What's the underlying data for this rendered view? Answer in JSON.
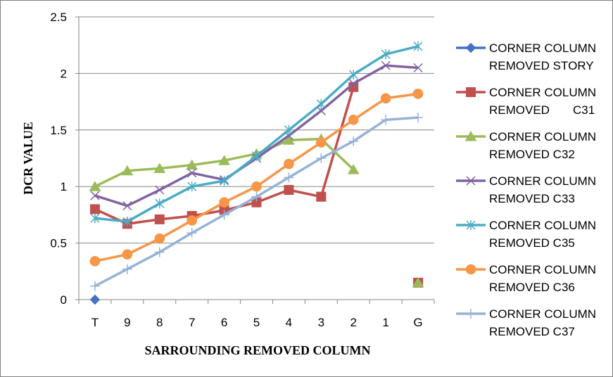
{
  "chart_data": {
    "type": "line",
    "categories": [
      "T",
      "9",
      "8",
      "7",
      "6",
      "5",
      "4",
      "3",
      "2",
      "1",
      "G"
    ],
    "xlabel": "SARROUNDING REMOVED COLUMN",
    "ylabel": "DCR VALUE",
    "ylim": [
      0,
      2.5
    ],
    "yticks": [
      "0",
      "0.5",
      "1",
      "1.5",
      "2",
      "2.5"
    ],
    "grid": "horizontal",
    "legend": "right",
    "series": [
      {
        "name": "CORNER COLUMN REMOVED STORY",
        "legend_lines": [
          "CORNER COLUMN",
          "REMOVED STORY"
        ],
        "color": "#4472C4",
        "marker": "diamond",
        "values": [
          0,
          null,
          null,
          null,
          null,
          null,
          null,
          null,
          null,
          null,
          null
        ]
      },
      {
        "name": "CORNER COLUMN REMOVED C31",
        "legend_lines": [
          "CORNER COLUMN",
          "REMOVED       C31"
        ],
        "color": "#C0504D",
        "marker": "square",
        "values": [
          0.8,
          0.67,
          0.71,
          0.74,
          0.79,
          0.86,
          0.97,
          0.91,
          1.88,
          null,
          0.15
        ]
      },
      {
        "name": "CORNER COLUMN REMOVED C32",
        "legend_lines": [
          "CORNER COLUMN",
          "REMOVED C32"
        ],
        "color": "#9BBB59",
        "marker": "triangle",
        "values": [
          1.0,
          1.14,
          1.16,
          1.19,
          1.23,
          1.29,
          1.41,
          1.42,
          1.15,
          null,
          0.15
        ]
      },
      {
        "name": "CORNER COLUMN REMOVED C33",
        "legend_lines": [
          "CORNER COLUMN",
          "REMOVED C33"
        ],
        "color": "#8064A2",
        "marker": "x",
        "values": [
          0.92,
          0.83,
          0.97,
          1.12,
          1.06,
          1.25,
          1.45,
          1.67,
          1.91,
          2.07,
          2.05
        ]
      },
      {
        "name": "CORNER COLUMN REMOVED C35",
        "legend_lines": [
          "CORNER COLUMN",
          "REMOVED C35"
        ],
        "color": "#4BACC6",
        "marker": "star",
        "values": [
          0.72,
          0.69,
          0.85,
          1.0,
          1.05,
          1.27,
          1.5,
          1.73,
          1.99,
          2.17,
          2.24
        ]
      },
      {
        "name": "CORNER COLUMN REMOVED C36",
        "legend_lines": [
          "CORNER COLUMN",
          "REMOVED C36"
        ],
        "color": "#F79646",
        "marker": "circle",
        "values": [
          0.34,
          0.4,
          0.54,
          0.7,
          0.86,
          1.0,
          1.2,
          1.39,
          1.59,
          1.78,
          1.82
        ]
      },
      {
        "name": "CORNER COLUMN REMOVED C37",
        "legend_lines": [
          "CORNER COLUMN",
          "REMOVED C37"
        ],
        "color": "#95B3D7",
        "marker": "plus",
        "values": [
          0.12,
          0.27,
          0.42,
          0.59,
          0.75,
          0.91,
          1.08,
          1.25,
          1.4,
          1.59,
          1.61
        ]
      }
    ]
  }
}
